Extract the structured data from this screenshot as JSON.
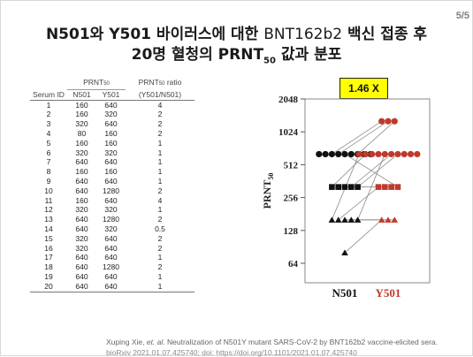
{
  "page_number": "5/5",
  "title": {
    "line1_bold_a": "N501와 Y501 바이러스에 대한 ",
    "line1_light": "BNT162b2",
    "line1_bold_b": " 백신 접종 후",
    "line2_a": "20명 혈청의 PRNT",
    "line2_sub": "50",
    "line2_b": " 값과 분포"
  },
  "table": {
    "col_serum": "Serum ID",
    "group_prnt": "PRNT",
    "group_prnt_sub": "50",
    "group_ratio": "PRNT",
    "group_ratio_sub": "50",
    "group_ratio_suffix": " ratio",
    "col_n501": "N501",
    "col_y501": "Y501",
    "col_ratio": "(Y501/N501)",
    "rows": [
      {
        "id": "1",
        "n": "160",
        "y": "640",
        "r": "4"
      },
      {
        "id": "2",
        "n": "160",
        "y": "320",
        "r": "2"
      },
      {
        "id": "3",
        "n": "320",
        "y": "640",
        "r": "2"
      },
      {
        "id": "4",
        "n": "80",
        "y": "160",
        "r": "2"
      },
      {
        "id": "5",
        "n": "160",
        "y": "160",
        "r": "1"
      },
      {
        "id": "6",
        "n": "320",
        "y": "320",
        "r": "1"
      },
      {
        "id": "7",
        "n": "640",
        "y": "640",
        "r": "1"
      },
      {
        "id": "8",
        "n": "160",
        "y": "160",
        "r": "1"
      },
      {
        "id": "9",
        "n": "640",
        "y": "640",
        "r": "1"
      },
      {
        "id": "10",
        "n": "640",
        "y": "1280",
        "r": "2"
      },
      {
        "id": "11",
        "n": "160",
        "y": "640",
        "r": "4"
      },
      {
        "id": "12",
        "n": "320",
        "y": "320",
        "r": "1"
      },
      {
        "id": "13",
        "n": "640",
        "y": "1280",
        "r": "2"
      },
      {
        "id": "14",
        "n": "640",
        "y": "320",
        "r": "0.5"
      },
      {
        "id": "15",
        "n": "320",
        "y": "640",
        "r": "2"
      },
      {
        "id": "16",
        "n": "320",
        "y": "640",
        "r": "2"
      },
      {
        "id": "17",
        "n": "640",
        "y": "640",
        "r": "1"
      },
      {
        "id": "18",
        "n": "640",
        "y": "1280",
        "r": "2"
      },
      {
        "id": "19",
        "n": "640",
        "y": "640",
        "r": "1"
      },
      {
        "id": "20",
        "n": "640",
        "y": "640",
        "r": "1"
      }
    ]
  },
  "badge": "1.46 X",
  "colors": {
    "n501": "#111111",
    "y501": "#c0392b",
    "badge_bg": "#ffff00"
  },
  "chart_data": {
    "type": "scatter",
    "title": "",
    "xlabel": "",
    "ylabel": "PRNT",
    "ylabel_sub": "50",
    "yscale": "log2",
    "ylim": [
      40,
      2048
    ],
    "yticks": [
      64,
      128,
      256,
      512,
      1024,
      2048
    ],
    "ytick_labels": [
      "64",
      "128",
      "256",
      "512",
      "1024",
      "2048"
    ],
    "categories": [
      "N501",
      "Y501"
    ],
    "series": [
      {
        "name": "N501",
        "values": [
          160,
          160,
          320,
          80,
          160,
          320,
          640,
          160,
          640,
          640,
          160,
          320,
          640,
          640,
          320,
          320,
          640,
          640,
          640,
          640
        ]
      },
      {
        "name": "Y501",
        "values": [
          640,
          320,
          640,
          160,
          160,
          320,
          640,
          160,
          640,
          1280,
          640,
          320,
          1280,
          320,
          640,
          640,
          640,
          1280,
          640,
          640
        ]
      }
    ],
    "paired_lines": true
  },
  "citation": {
    "authors": "Xuping Xie, ",
    "etal": "et. al.",
    "text": " Neutralization of N501Y mutant SARS-CoV-2 by BNT162b2 vaccine-elicited sera.",
    "line2": "bioRxiv 2021.01.07.425740; doi: https://doi.org/10.1101/2021.01.07.425740"
  }
}
